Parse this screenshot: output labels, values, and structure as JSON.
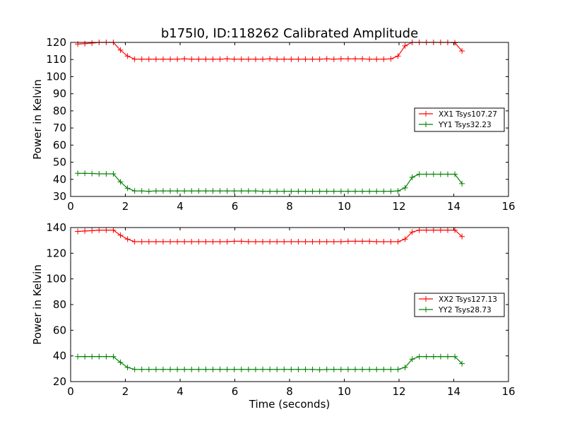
{
  "title": "b175l0, ID:118262 Calibrated Amplitude",
  "colors": {
    "series_a": "#ff0000",
    "series_b": "#008000",
    "axes": "#000000",
    "background": "#ffffff"
  },
  "chart_data": [
    {
      "type": "line",
      "title": "b175l0, ID:118262 Calibrated Amplitude",
      "xlabel": "",
      "ylabel": "Power in Kelvin",
      "xlim": [
        0,
        16
      ],
      "ylim": [
        30,
        120
      ],
      "xticks": [
        0,
        2,
        4,
        6,
        8,
        10,
        12,
        14,
        16
      ],
      "yticks": [
        30,
        40,
        50,
        60,
        70,
        80,
        90,
        100,
        110,
        120
      ],
      "grid": false,
      "legend_position": "right",
      "marker": "plus",
      "x": [
        0.26,
        0.52,
        0.78,
        1.04,
        1.3,
        1.56,
        1.82,
        2.08,
        2.34,
        2.6,
        2.86,
        3.12,
        3.38,
        3.64,
        3.9,
        4.16,
        4.42,
        4.68,
        4.94,
        5.2,
        5.46,
        5.72,
        5.98,
        6.24,
        6.5,
        6.76,
        7.02,
        7.28,
        7.54,
        7.8,
        8.06,
        8.32,
        8.58,
        8.84,
        9.1,
        9.36,
        9.62,
        9.88,
        10.14,
        10.4,
        10.66,
        10.92,
        11.18,
        11.44,
        11.7,
        11.96,
        12.22,
        12.48,
        12.74,
        13.0,
        13.26,
        13.52,
        13.78,
        14.04,
        14.3
      ],
      "series": [
        {
          "name": "XX1 Tsys107.27",
          "color": "#ff0000",
          "values": [
            119,
            119.3,
            119.6,
            120,
            120,
            120,
            115.5,
            112,
            110.2,
            110.2,
            110.2,
            110.2,
            110.2,
            110.2,
            110.2,
            110.4,
            110.2,
            110.2,
            110.2,
            110.2,
            110.2,
            110.4,
            110.2,
            110.2,
            110.2,
            110.2,
            110.2,
            110.4,
            110.2,
            110.2,
            110.2,
            110.2,
            110.2,
            110.2,
            110.2,
            110.4,
            110.2,
            110.4,
            110.4,
            110.4,
            110.4,
            110.2,
            110.2,
            110.2,
            110.4,
            112,
            118,
            120,
            120,
            120,
            120,
            120,
            120,
            119.8,
            115
          ]
        },
        {
          "name": "YY1 Tsys32.23",
          "color": "#008000",
          "values": [
            43.5,
            43.5,
            43.4,
            43.2,
            43.2,
            43.2,
            38.5,
            34.8,
            33.2,
            33.2,
            33,
            33.2,
            33.2,
            33.2,
            33.2,
            33.2,
            33.2,
            33.2,
            33.2,
            33.2,
            33.2,
            33.2,
            33.2,
            33.2,
            33.2,
            33.2,
            33,
            33,
            33,
            33,
            33,
            33,
            33,
            33,
            33,
            33,
            33,
            33,
            33,
            33,
            33,
            33,
            33,
            33,
            33,
            33.2,
            35,
            41.2,
            43,
            43,
            43,
            43,
            43,
            43,
            37.5
          ]
        }
      ]
    },
    {
      "type": "line",
      "title": "",
      "xlabel": "Time (seconds)",
      "ylabel": "Power in Kelvin",
      "xlim": [
        0,
        16
      ],
      "ylim": [
        20,
        140
      ],
      "xticks": [
        0,
        2,
        4,
        6,
        8,
        10,
        12,
        14,
        16
      ],
      "yticks": [
        20,
        40,
        60,
        80,
        100,
        120,
        140
      ],
      "grid": false,
      "legend_position": "right",
      "marker": "plus",
      "x": [
        0.26,
        0.52,
        0.78,
        1.04,
        1.3,
        1.56,
        1.82,
        2.08,
        2.34,
        2.6,
        2.86,
        3.12,
        3.38,
        3.64,
        3.9,
        4.16,
        4.42,
        4.68,
        4.94,
        5.2,
        5.46,
        5.72,
        5.98,
        6.24,
        6.5,
        6.76,
        7.02,
        7.28,
        7.54,
        7.8,
        8.06,
        8.32,
        8.58,
        8.84,
        9.1,
        9.36,
        9.62,
        9.88,
        10.14,
        10.4,
        10.66,
        10.92,
        11.18,
        11.44,
        11.7,
        11.96,
        12.22,
        12.48,
        12.74,
        13.0,
        13.26,
        13.52,
        13.78,
        14.04,
        14.3
      ],
      "series": [
        {
          "name": "XX2 Tsys127.13",
          "color": "#ff0000",
          "values": [
            137,
            137.3,
            137.6,
            138,
            138,
            138,
            134,
            131,
            129,
            129,
            129,
            129,
            129,
            129,
            129,
            129,
            129,
            129,
            129,
            129,
            129,
            129,
            129.3,
            129.3,
            129,
            129,
            129,
            129,
            129,
            129,
            129,
            129,
            129,
            129,
            129,
            129,
            129,
            129,
            129.3,
            129.3,
            129.3,
            129.3,
            129,
            129,
            129,
            129,
            131,
            136.5,
            138,
            138,
            138,
            138,
            138,
            138,
            133
          ]
        },
        {
          "name": "YY2 Tsys28.73",
          "color": "#008000",
          "values": [
            39.5,
            39.5,
            39.5,
            39.5,
            39.5,
            39.5,
            35,
            31,
            29.5,
            29.5,
            29.5,
            29.5,
            29.5,
            29.5,
            29.5,
            29.5,
            29.5,
            29.5,
            29.5,
            29.5,
            29.5,
            29.5,
            29.5,
            29.5,
            29.5,
            29.5,
            29.5,
            29.5,
            29.5,
            29.5,
            29.5,
            29.5,
            29.5,
            29.5,
            29.2,
            29.5,
            29.5,
            29.5,
            29.5,
            29.5,
            29.5,
            29.5,
            29.5,
            29.5,
            29.5,
            29.5,
            31,
            37.5,
            39.5,
            39.5,
            39.5,
            39.5,
            39.5,
            39.5,
            34
          ]
        }
      ]
    }
  ]
}
